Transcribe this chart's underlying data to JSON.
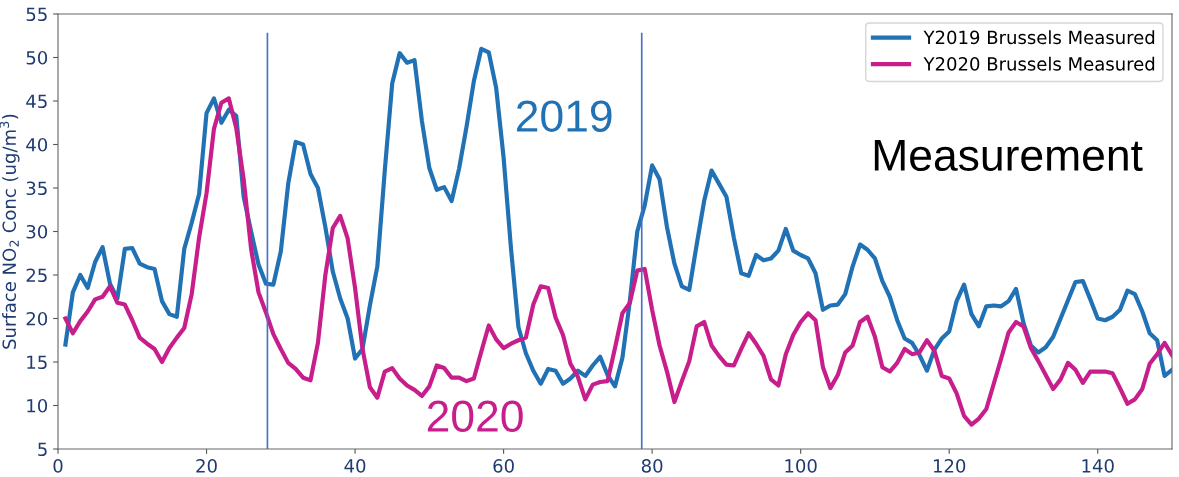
{
  "chart_data": {
    "type": "line",
    "ylabel": "Surface NO$_{2}$ Conc (ug/m$^{3}$)",
    "x": [
      1,
      2,
      3,
      4,
      5,
      6,
      7,
      8,
      9,
      10,
      11,
      12,
      13,
      14,
      15,
      16,
      17,
      18,
      19,
      20,
      21,
      22,
      23,
      24,
      25,
      26,
      27,
      28,
      29,
      30,
      31,
      32,
      33,
      34,
      35,
      36,
      37,
      38,
      39,
      40,
      41,
      42,
      43,
      44,
      45,
      46,
      47,
      48,
      49,
      50,
      51,
      52,
      53,
      54,
      55,
      56,
      57,
      58,
      59,
      60,
      61,
      62,
      63,
      64,
      65,
      66,
      67,
      68,
      69,
      70,
      71,
      72,
      73,
      74,
      75,
      76,
      77,
      78,
      79,
      80,
      81,
      82,
      83,
      84,
      85,
      86,
      87,
      88,
      89,
      90,
      91,
      92,
      93,
      94,
      95,
      96,
      97,
      98,
      99,
      100,
      101,
      102,
      103,
      104,
      105,
      106,
      107,
      108,
      109,
      110,
      111,
      112,
      113,
      114,
      115,
      116,
      117,
      118,
      119,
      120,
      121,
      122,
      123,
      124,
      125,
      126,
      127,
      128,
      129,
      130,
      131,
      132,
      133,
      134,
      135,
      136,
      137,
      138,
      139,
      140,
      141,
      142,
      143,
      144,
      145,
      146,
      147,
      148,
      149,
      150
    ],
    "series": [
      {
        "name": "Y2019 Brussels Measured",
        "color": "#2171b5",
        "values": [
          17,
          23,
          25,
          23.5,
          26.5,
          28.2,
          24,
          22.3,
          28,
          28.1,
          26.3,
          25.9,
          25.7,
          22,
          20.5,
          20.2,
          28,
          31,
          34.3,
          43.6,
          45.3,
          42.5,
          44,
          43.3,
          34,
          30,
          26.2,
          24,
          23.9,
          27.7,
          35.5,
          40.3,
          40,
          36.6,
          35,
          30.5,
          25.4,
          22.3,
          20,
          15.4,
          16.5,
          21.5,
          26,
          37,
          47,
          50.5,
          49.4,
          49.7,
          42.7,
          37.3,
          34.8,
          35.1,
          33.5,
          37.2,
          42,
          47.3,
          51,
          50.6,
          46.5,
          38.5,
          28,
          19,
          16,
          14,
          12.5,
          14.2,
          14,
          12.5,
          13.1,
          14,
          13.4,
          14.6,
          15.6,
          13.5,
          12.2,
          15.5,
          22,
          30,
          33,
          37.6,
          36,
          30.5,
          26.3,
          23.7,
          23.3,
          28.5,
          33.5,
          37,
          35.5,
          34,
          29.3,
          25.2,
          24.9,
          27.3,
          26.7,
          26.9,
          27.8,
          30.3,
          27.8,
          27.3,
          26.9,
          25.2,
          21,
          21.5,
          21.6,
          22.8,
          26,
          28.5,
          27.9,
          26.9,
          24.3,
          22.5,
          19.8,
          17.7,
          17.2,
          15.8,
          14,
          16.4,
          17.7,
          18.5,
          22,
          23.9,
          20.5,
          19.1,
          21.4,
          21.5,
          21.4,
          22,
          23.4,
          19.5,
          16.9,
          16.1,
          16.7,
          17.9,
          20,
          22.1,
          24.2,
          24.3,
          22.2,
          20,
          19.8,
          20.2,
          21,
          23.2,
          22.8,
          20.8,
          18.3,
          17.5,
          13.4,
          14.1
        ]
      },
      {
        "name": "Y2020 Brussels Measured",
        "color": "#c71e8c",
        "values": [
          20,
          18.3,
          19.7,
          20.8,
          22.2,
          22.5,
          23.7,
          21.8,
          21.6,
          19.8,
          17.8,
          17.1,
          16.5,
          15,
          16.6,
          17.8,
          18.9,
          22.8,
          29.3,
          34.4,
          41.8,
          44.8,
          45.3,
          41.9,
          36,
          28,
          23,
          20.7,
          18.2,
          16.5,
          14.9,
          14.2,
          13.2,
          12.9,
          17.2,
          25,
          30.4,
          31.8,
          29.2,
          23.5,
          16.5,
          12.1,
          10.9,
          13.9,
          14.3,
          13.1,
          12.3,
          11.8,
          11.1,
          12.2,
          14.6,
          14.3,
          13.2,
          13.2,
          12.8,
          13.1,
          16.2,
          19.2,
          17.6,
          16.6,
          17.1,
          17.5,
          17.8,
          21.6,
          23.7,
          23.5,
          20.1,
          18.1,
          14.8,
          13.3,
          10.7,
          12.4,
          12.7,
          12.8,
          16.6,
          20.6,
          21.8,
          25.5,
          25.7,
          21,
          16.9,
          13.9,
          10.4,
          12.8,
          15.1,
          19.1,
          19.6,
          16.9,
          15.7,
          14.7,
          14.6,
          16.5,
          18.3,
          17.1,
          15.7,
          13,
          12.3,
          15.9,
          18.1,
          19.6,
          20.6,
          19.8,
          14.4,
          12,
          13.5,
          16.1,
          16.9,
          19.6,
          20.2,
          17.9,
          14.4,
          13.9,
          14.9,
          16.5,
          15.9,
          16.1,
          17.5,
          16.3,
          13.4,
          13.1,
          11.4,
          8.8,
          7.8,
          8.5,
          9.6,
          12.5,
          15.4,
          18.4,
          19.6,
          19.1,
          16.6,
          15.1,
          13.5,
          11.9,
          13,
          14.9,
          14.1,
          12.6,
          13.9,
          13.9,
          13.9,
          13.7,
          12,
          10.2,
          10.7,
          11.9,
          14.8,
          15.9,
          17.2,
          15.8
        ]
      }
    ],
    "annotations": [
      "2019",
      "2020",
      "Measurement"
    ],
    "ref_lines": [
      {
        "axis": "x",
        "value": 28.2,
        "color": "#4472c4"
      },
      {
        "axis": "x",
        "value": 78.6,
        "color": "#4472c4"
      }
    ],
    "xlim": [
      0,
      150
    ],
    "xticks": [
      0,
      20,
      40,
      60,
      80,
      100,
      120,
      140
    ],
    "ylim": [
      5,
      55
    ],
    "yticks": [
      5,
      10,
      15,
      20,
      25,
      30,
      35,
      40,
      45,
      50,
      55
    ],
    "grid": false,
    "legend": "top right",
    "line_style": "solid",
    "marker": "none"
  }
}
